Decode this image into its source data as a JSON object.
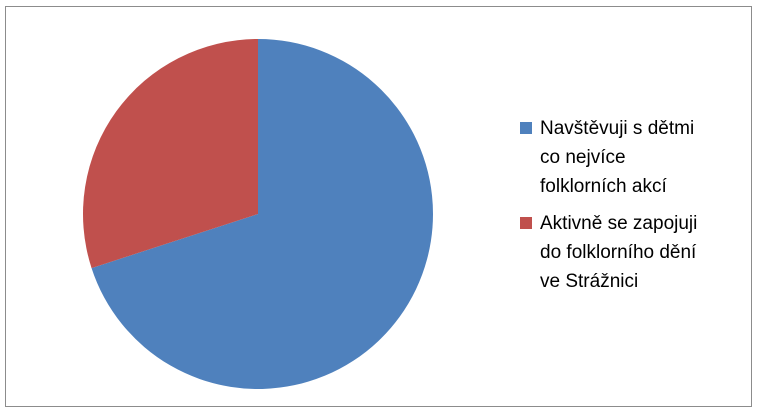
{
  "chart_data": {
    "type": "pie",
    "slices": [
      {
        "label": "Navštěvuji s dětmi co nejvíce folklorních akcí",
        "value": 70,
        "color": "#4f81bd"
      },
      {
        "label": "Aktivně se zapojuji do folklorního dění ve Strážnici",
        "value": 30,
        "color": "#c0504d"
      }
    ],
    "legend": {
      "position": "right",
      "items": [
        {
          "lines": [
            "Navštěvuji s dětmi",
            "co nejvíce",
            "folklorních akcí"
          ],
          "color": "#4f81bd"
        },
        {
          "lines": [
            "Aktivně se zapojuji",
            "do folklorního dění",
            "ve Strážnici"
          ],
          "color": "#c0504d"
        }
      ]
    }
  }
}
